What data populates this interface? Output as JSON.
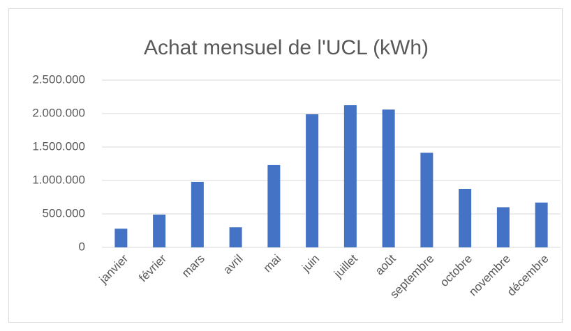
{
  "chart_data": {
    "type": "bar",
    "title": "Achat mensuel de l'UCL (kWh)",
    "categories": [
      "janvier",
      "février",
      "mars",
      "avril",
      "mai",
      "juin",
      "juillet",
      "août",
      "septembre",
      "octobre",
      "novembre",
      "décembre"
    ],
    "values": [
      280000,
      490000,
      980000,
      300000,
      1230000,
      1990000,
      2125000,
      2060000,
      1415000,
      875000,
      600000,
      670000
    ],
    "color": "#4472c4",
    "ylim": [
      0,
      2500000
    ],
    "yticks": [
      0,
      {
        "value": 500000,
        "label": "500.000"
      },
      {
        "value": 1000000,
        "label": "1.000.000"
      },
      {
        "value": 1500000,
        "label": "1.500.000"
      },
      {
        "value": 2000000,
        "label": "2.000.000"
      },
      {
        "value": 2500000,
        "label": "2.500.000"
      }
    ],
    "grid": true
  }
}
